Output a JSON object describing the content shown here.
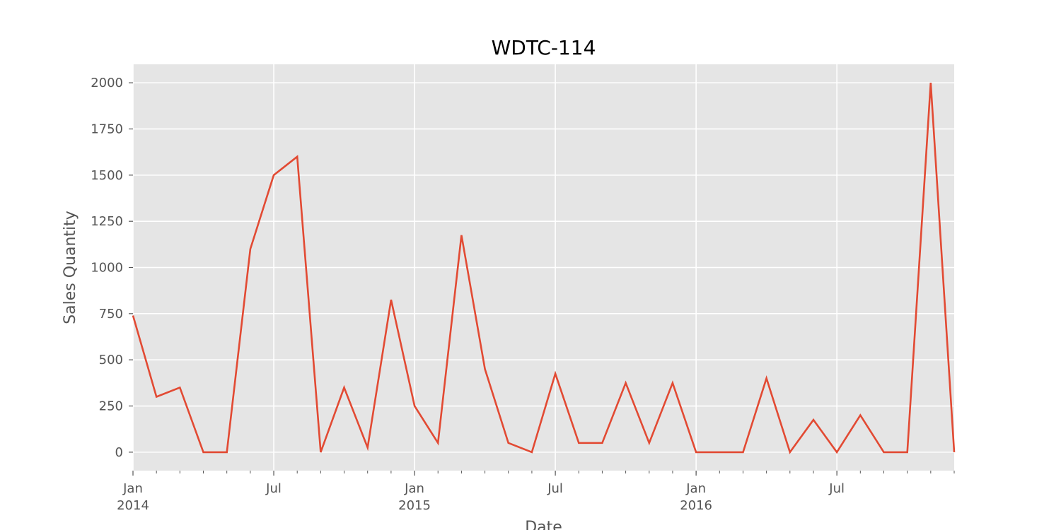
{
  "chart_data": {
    "type": "line",
    "title": "WDTC-114",
    "xlabel": "Date",
    "ylabel": "Sales Quantity",
    "x_start": "2014-01",
    "x_end": "2016-12",
    "ylim": [
      -100,
      2100
    ],
    "yticks": [
      0,
      250,
      500,
      750,
      1000,
      1250,
      1500,
      1750,
      2000
    ],
    "xticks_major": [
      {
        "month": "2014-01",
        "label": "Jan",
        "year": "2014"
      },
      {
        "month": "2014-07",
        "label": "Jul",
        "year": ""
      },
      {
        "month": "2015-01",
        "label": "Jan",
        "year": "2015"
      },
      {
        "month": "2015-07",
        "label": "Jul",
        "year": ""
      },
      {
        "month": "2016-01",
        "label": "Jan",
        "year": "2016"
      },
      {
        "month": "2016-07",
        "label": "Jul",
        "year": ""
      }
    ],
    "grid": true,
    "series": [
      {
        "color": "#E24A33",
        "x": [
          "2014-01",
          "2014-02",
          "2014-03",
          "2014-04",
          "2014-05",
          "2014-06",
          "2014-07",
          "2014-08",
          "2014-09",
          "2014-10",
          "2014-11",
          "2014-12",
          "2015-01",
          "2015-02",
          "2015-03",
          "2015-04",
          "2015-05",
          "2015-06",
          "2015-07",
          "2015-08",
          "2015-09",
          "2015-10",
          "2015-11",
          "2015-12",
          "2016-01",
          "2016-02",
          "2016-03",
          "2016-04",
          "2016-05",
          "2016-06",
          "2016-07",
          "2016-08",
          "2016-09",
          "2016-10",
          "2016-11",
          "2016-12"
        ],
        "values": [
          740,
          300,
          350,
          0,
          0,
          1100,
          1500,
          1600,
          0,
          350,
          25,
          825,
          250,
          50,
          1175,
          450,
          50,
          0,
          425,
          50,
          50,
          375,
          50,
          375,
          0,
          0,
          0,
          400,
          0,
          175,
          0,
          200,
          0,
          0,
          2000,
          0
        ]
      }
    ]
  }
}
